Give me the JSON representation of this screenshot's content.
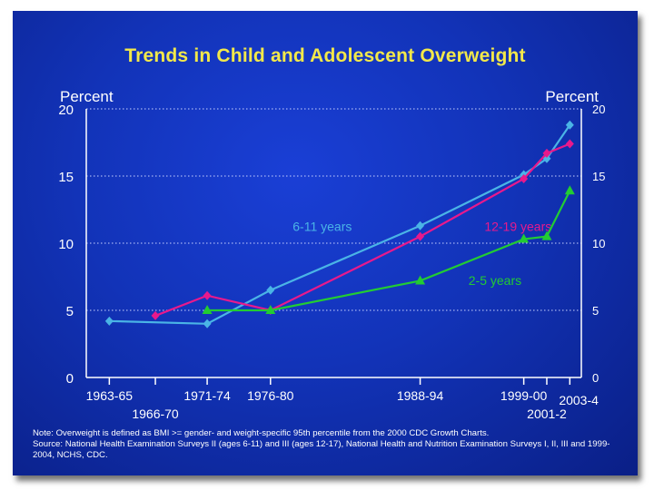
{
  "slide": {
    "background": "#1233b8",
    "title_color": "#f2e84a"
  },
  "chart_data": {
    "type": "line",
    "title": "Trends in Child and Adolescent Overweight",
    "ylabel_left": "Percent",
    "ylabel_right": "Percent",
    "ylim": [
      0,
      20
    ],
    "yticks": [
      0,
      5,
      10,
      15,
      20
    ],
    "grid": "dotted horizontal",
    "x_positions": [
      1964,
      1968,
      1972.5,
      1978,
      1991,
      2000,
      2002,
      2004
    ],
    "x_ticks": [
      {
        "label": "1963-65",
        "x": 1964,
        "row": 1
      },
      {
        "label": "1966-70",
        "x": 1968,
        "row": 2
      },
      {
        "label": "1971-74",
        "x": 1972.5,
        "row": 1
      },
      {
        "label": "1976-80",
        "x": 1978,
        "row": 1
      },
      {
        "label": "1988-94",
        "x": 1991,
        "row": 1
      },
      {
        "label": "1999-00",
        "x": 2000,
        "row": 1
      },
      {
        "label": "2001-2",
        "x": 2002,
        "row": 2
      },
      {
        "label": "2003-4",
        "x": 2004,
        "row": 1.4
      }
    ],
    "series": [
      {
        "name": "6-11 years",
        "color": "#4ab4e6",
        "marker": "diamond",
        "points": [
          [
            1964,
            4.2
          ],
          [
            1972.5,
            4.0
          ],
          [
            1978,
            6.5
          ],
          [
            1991,
            11.3
          ],
          [
            2000,
            15.1
          ],
          [
            2002,
            16.3
          ],
          [
            2004,
            18.8
          ]
        ]
      },
      {
        "name": "12-19 years",
        "color": "#e8198c",
        "marker": "diamond",
        "points": [
          [
            1968,
            4.6
          ],
          [
            1972.5,
            6.1
          ],
          [
            1978,
            5.0
          ],
          [
            1991,
            10.5
          ],
          [
            2000,
            14.8
          ],
          [
            2002,
            16.7
          ],
          [
            2004,
            17.4
          ]
        ]
      },
      {
        "name": "2-5 years",
        "color": "#22cc33",
        "marker": "triangle",
        "points": [
          [
            1972.5,
            5.0
          ],
          [
            1978,
            5.0
          ],
          [
            1991,
            7.2
          ],
          [
            2000,
            10.3
          ],
          [
            2002,
            10.5
          ],
          [
            2004,
            13.9
          ]
        ]
      }
    ],
    "annotations": [
      {
        "text": "6-11 years",
        "series": "6-11 years"
      },
      {
        "text": "12-19 years",
        "series": "12-19 years"
      },
      {
        "text": "2-5 years",
        "series": "2-5 years"
      }
    ]
  },
  "notes": {
    "line1": "Note: Overweight is defined as BMI >= gender- and weight-specific 95th percentile from the 2000 CDC Growth Charts.",
    "line2": "Source: National Health Examination Surveys II (ages 6-11) and III (ages 12-17), National Health and Nutrition Examination Surveys I, II, III and 1999-2004, NCHS, CDC."
  }
}
